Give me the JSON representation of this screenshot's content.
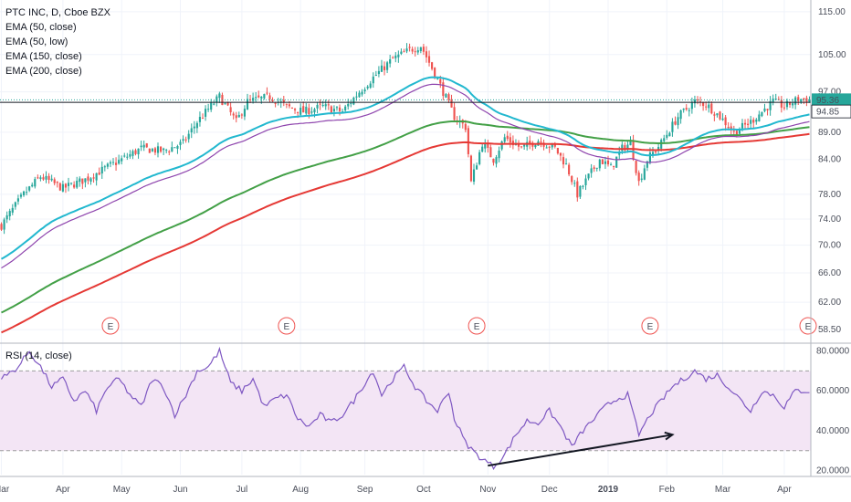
{
  "legend": {
    "title": "PTC INC, D, Cboe BZX",
    "ema50_close": "EMA (50, close)",
    "ema50_low": "EMA (50, low)",
    "ema150": "EMA (150, close)",
    "ema200": "EMA (200, close)"
  },
  "rsi_title": "RSI (14, close)",
  "price_badge": "95.36",
  "line_badge": "94.85",
  "earnings_label": "E",
  "colors": {
    "up": "#26a69a",
    "down": "#ef5350",
    "ema50_close": "#22b8cf",
    "ema50_low": "#8e44ad",
    "ema150": "#43a047",
    "ema200": "#e53935",
    "rsi": "#7e57c2",
    "rsi_band": "#f3e5f5"
  },
  "chart_data": [
    {
      "type": "candlestick",
      "title": "PTC INC, D, Cboe BZX",
      "y_scale": "log",
      "ylim": [
        57.5,
        117
      ],
      "y_ticks": [
        "115.00",
        "105.00",
        "97.00",
        "89.00",
        "84.00",
        "78.00",
        "74.00",
        "70.00",
        "66.00",
        "62.00",
        "58.50"
      ],
      "x_ticks": [
        "Mar",
        "Apr",
        "May",
        "Jun",
        "Jul",
        "Aug",
        "Sep",
        "Oct",
        "Nov",
        "Dec",
        "2019",
        "Feb",
        "Mar",
        "Apr"
      ],
      "x_tick_index": [
        0,
        22,
        43,
        64,
        86,
        107,
        130,
        151,
        174,
        196,
        217,
        238,
        258,
        280
      ],
      "n_bars": 290,
      "anchors": [
        [
          0,
          73
        ],
        [
          8,
          78
        ],
        [
          14,
          81
        ],
        [
          22,
          79
        ],
        [
          30,
          80.5
        ],
        [
          43,
          84
        ],
        [
          50,
          86
        ],
        [
          58,
          85.5
        ],
        [
          65,
          87
        ],
        [
          70,
          91
        ],
        [
          78,
          96
        ],
        [
          84,
          91
        ],
        [
          88,
          95
        ],
        [
          96,
          96
        ],
        [
          102,
          94
        ],
        [
          108,
          93
        ],
        [
          115,
          94
        ],
        [
          122,
          93
        ],
        [
          128,
          97
        ],
        [
          133,
          100
        ],
        [
          140,
          104
        ],
        [
          146,
          106
        ],
        [
          150,
          107
        ],
        [
          154,
          102
        ],
        [
          158,
          97
        ],
        [
          162,
          92
        ],
        [
          166,
          90
        ],
        [
          168,
          80
        ],
        [
          172,
          87
        ],
        [
          176,
          84
        ],
        [
          180,
          88
        ],
        [
          186,
          86
        ],
        [
          192,
          87.5
        ],
        [
          198,
          86
        ],
        [
          202,
          83
        ],
        [
          206,
          78
        ],
        [
          210,
          81
        ],
        [
          214,
          84
        ],
        [
          218,
          82.5
        ],
        [
          222,
          86
        ],
        [
          225,
          87
        ],
        [
          228,
          80
        ],
        [
          231,
          84
        ],
        [
          236,
          87
        ],
        [
          242,
          92
        ],
        [
          248,
          95
        ],
        [
          252,
          94.5
        ],
        [
          257,
          92
        ],
        [
          262,
          89
        ],
        [
          268,
          91
        ],
        [
          272,
          93
        ],
        [
          276,
          95
        ],
        [
          280,
          94
        ],
        [
          285,
          95.5
        ],
        [
          289,
          95.36
        ]
      ],
      "earnings_bar_index": [
        39,
        102,
        170,
        232,
        289
      ],
      "horizontal_line": 94.85,
      "last_close": 95.36
    },
    {
      "type": "line",
      "title": "RSI (14, close)",
      "ylim": [
        18,
        83
      ],
      "y_ticks": [
        "80.0000",
        "60.0000",
        "40.0000",
        "20.0000"
      ],
      "bands": [
        30,
        70
      ],
      "anchors": [
        [
          0,
          66
        ],
        [
          6,
          72
        ],
        [
          10,
          80
        ],
        [
          14,
          72
        ],
        [
          18,
          62
        ],
        [
          22,
          66
        ],
        [
          26,
          55
        ],
        [
          30,
          60
        ],
        [
          34,
          50
        ],
        [
          38,
          62
        ],
        [
          42,
          66
        ],
        [
          46,
          58
        ],
        [
          50,
          52
        ],
        [
          54,
          66
        ],
        [
          58,
          62
        ],
        [
          62,
          48
        ],
        [
          66,
          58
        ],
        [
          70,
          70
        ],
        [
          74,
          72
        ],
        [
          78,
          80
        ],
        [
          82,
          64
        ],
        [
          86,
          60
        ],
        [
          90,
          66
        ],
        [
          94,
          52
        ],
        [
          98,
          56
        ],
        [
          102,
          58
        ],
        [
          106,
          46
        ],
        [
          110,
          42
        ],
        [
          114,
          48
        ],
        [
          118,
          44
        ],
        [
          122,
          48
        ],
        [
          126,
          55
        ],
        [
          130,
          64
        ],
        [
          133,
          70
        ],
        [
          136,
          58
        ],
        [
          140,
          66
        ],
        [
          144,
          72
        ],
        [
          148,
          62
        ],
        [
          152,
          55
        ],
        [
          156,
          50
        ],
        [
          160,
          60
        ],
        [
          162,
          46
        ],
        [
          166,
          34
        ],
        [
          170,
          28
        ],
        [
          174,
          24
        ],
        [
          176,
          22
        ],
        [
          180,
          28
        ],
        [
          184,
          38
        ],
        [
          188,
          45
        ],
        [
          192,
          44
        ],
        [
          196,
          50
        ],
        [
          200,
          42
        ],
        [
          204,
          32
        ],
        [
          208,
          40
        ],
        [
          212,
          46
        ],
        [
          216,
          52
        ],
        [
          220,
          56
        ],
        [
          224,
          58
        ],
        [
          228,
          38
        ],
        [
          232,
          48
        ],
        [
          236,
          55
        ],
        [
          240,
          62
        ],
        [
          244,
          66
        ],
        [
          248,
          70
        ],
        [
          252,
          66
        ],
        [
          256,
          68
        ],
        [
          260,
          62
        ],
        [
          264,
          56
        ],
        [
          268,
          50
        ],
        [
          272,
          60
        ],
        [
          276,
          58
        ],
        [
          280,
          52
        ],
        [
          284,
          60
        ],
        [
          289,
          60
        ]
      ],
      "divergence_arrow": {
        "from": [
          174,
          22.5
        ],
        "to": [
          240,
          38
        ]
      }
    }
  ]
}
